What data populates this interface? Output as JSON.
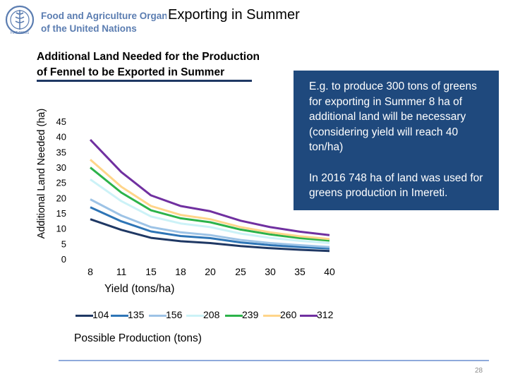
{
  "header": {
    "org_line1": "Food and Agriculture Organization",
    "org_line2": "of the United Nations",
    "slide_title": "Exporting in Summer"
  },
  "callout": {
    "paragraph1": "E.g. to produce 300 tons of greens for exporting in Summer 8 ha of additional land will be necessary (considering yield will reach 40 ton/ha)",
    "paragraph2": "In 2016 748 ha of land was used for greens production in Imereti."
  },
  "legend_title": "Possible Production (tons)",
  "page_number": "28",
  "colors": {
    "callout_bg": "#1f497d",
    "title_rule": "#1f3864",
    "fao_blue": "#5b7db1"
  },
  "chart_data": {
    "type": "line",
    "title_line1": "Additional Land Needed for the Production",
    "title_line2": "of Fennel to be Exported in Summer",
    "xlabel": "Yield (tons/ha)",
    "ylabel": "Additional Land Needed (ha)",
    "categories": [
      "8",
      "11",
      "15",
      "18",
      "20",
      "25",
      "30",
      "35",
      "40"
    ],
    "yticks": [
      "0",
      "5",
      "10",
      "15",
      "20",
      "25",
      "30",
      "35",
      "40",
      "45"
    ],
    "ylim": [
      0,
      45
    ],
    "grid": false,
    "series": [
      {
        "name": "104",
        "color": "#1f3864",
        "values": [
          13,
          9.5,
          6.9,
          5.8,
          5.2,
          4.2,
          3.5,
          3.0,
          2.6
        ]
      },
      {
        "name": "135",
        "color": "#2e75b6",
        "values": [
          16.9,
          12.3,
          9.0,
          7.5,
          6.8,
          5.4,
          4.5,
          3.9,
          3.4
        ]
      },
      {
        "name": "156",
        "color": "#9dc3e6",
        "values": [
          19.5,
          14.2,
          10.4,
          8.7,
          7.8,
          6.2,
          5.2,
          4.5,
          3.9
        ]
      },
      {
        "name": "208",
        "color": "#ccf2f7",
        "values": [
          26,
          18.9,
          13.9,
          11.6,
          10.4,
          8.3,
          6.9,
          5.9,
          5.2
        ]
      },
      {
        "name": "239",
        "color": "#2cb34a",
        "values": [
          29.9,
          21.7,
          15.9,
          13.3,
          12.0,
          9.6,
          8.0,
          6.8,
          6.0
        ]
      },
      {
        "name": "260",
        "color": "#ffd58a",
        "values": [
          32.5,
          23.6,
          17.3,
          14.4,
          13.0,
          10.4,
          8.7,
          7.4,
          6.5
        ]
      },
      {
        "name": "312",
        "color": "#7030a0",
        "values": [
          39,
          28.4,
          20.8,
          17.3,
          15.6,
          12.5,
          10.4,
          8.9,
          7.8
        ]
      }
    ]
  }
}
